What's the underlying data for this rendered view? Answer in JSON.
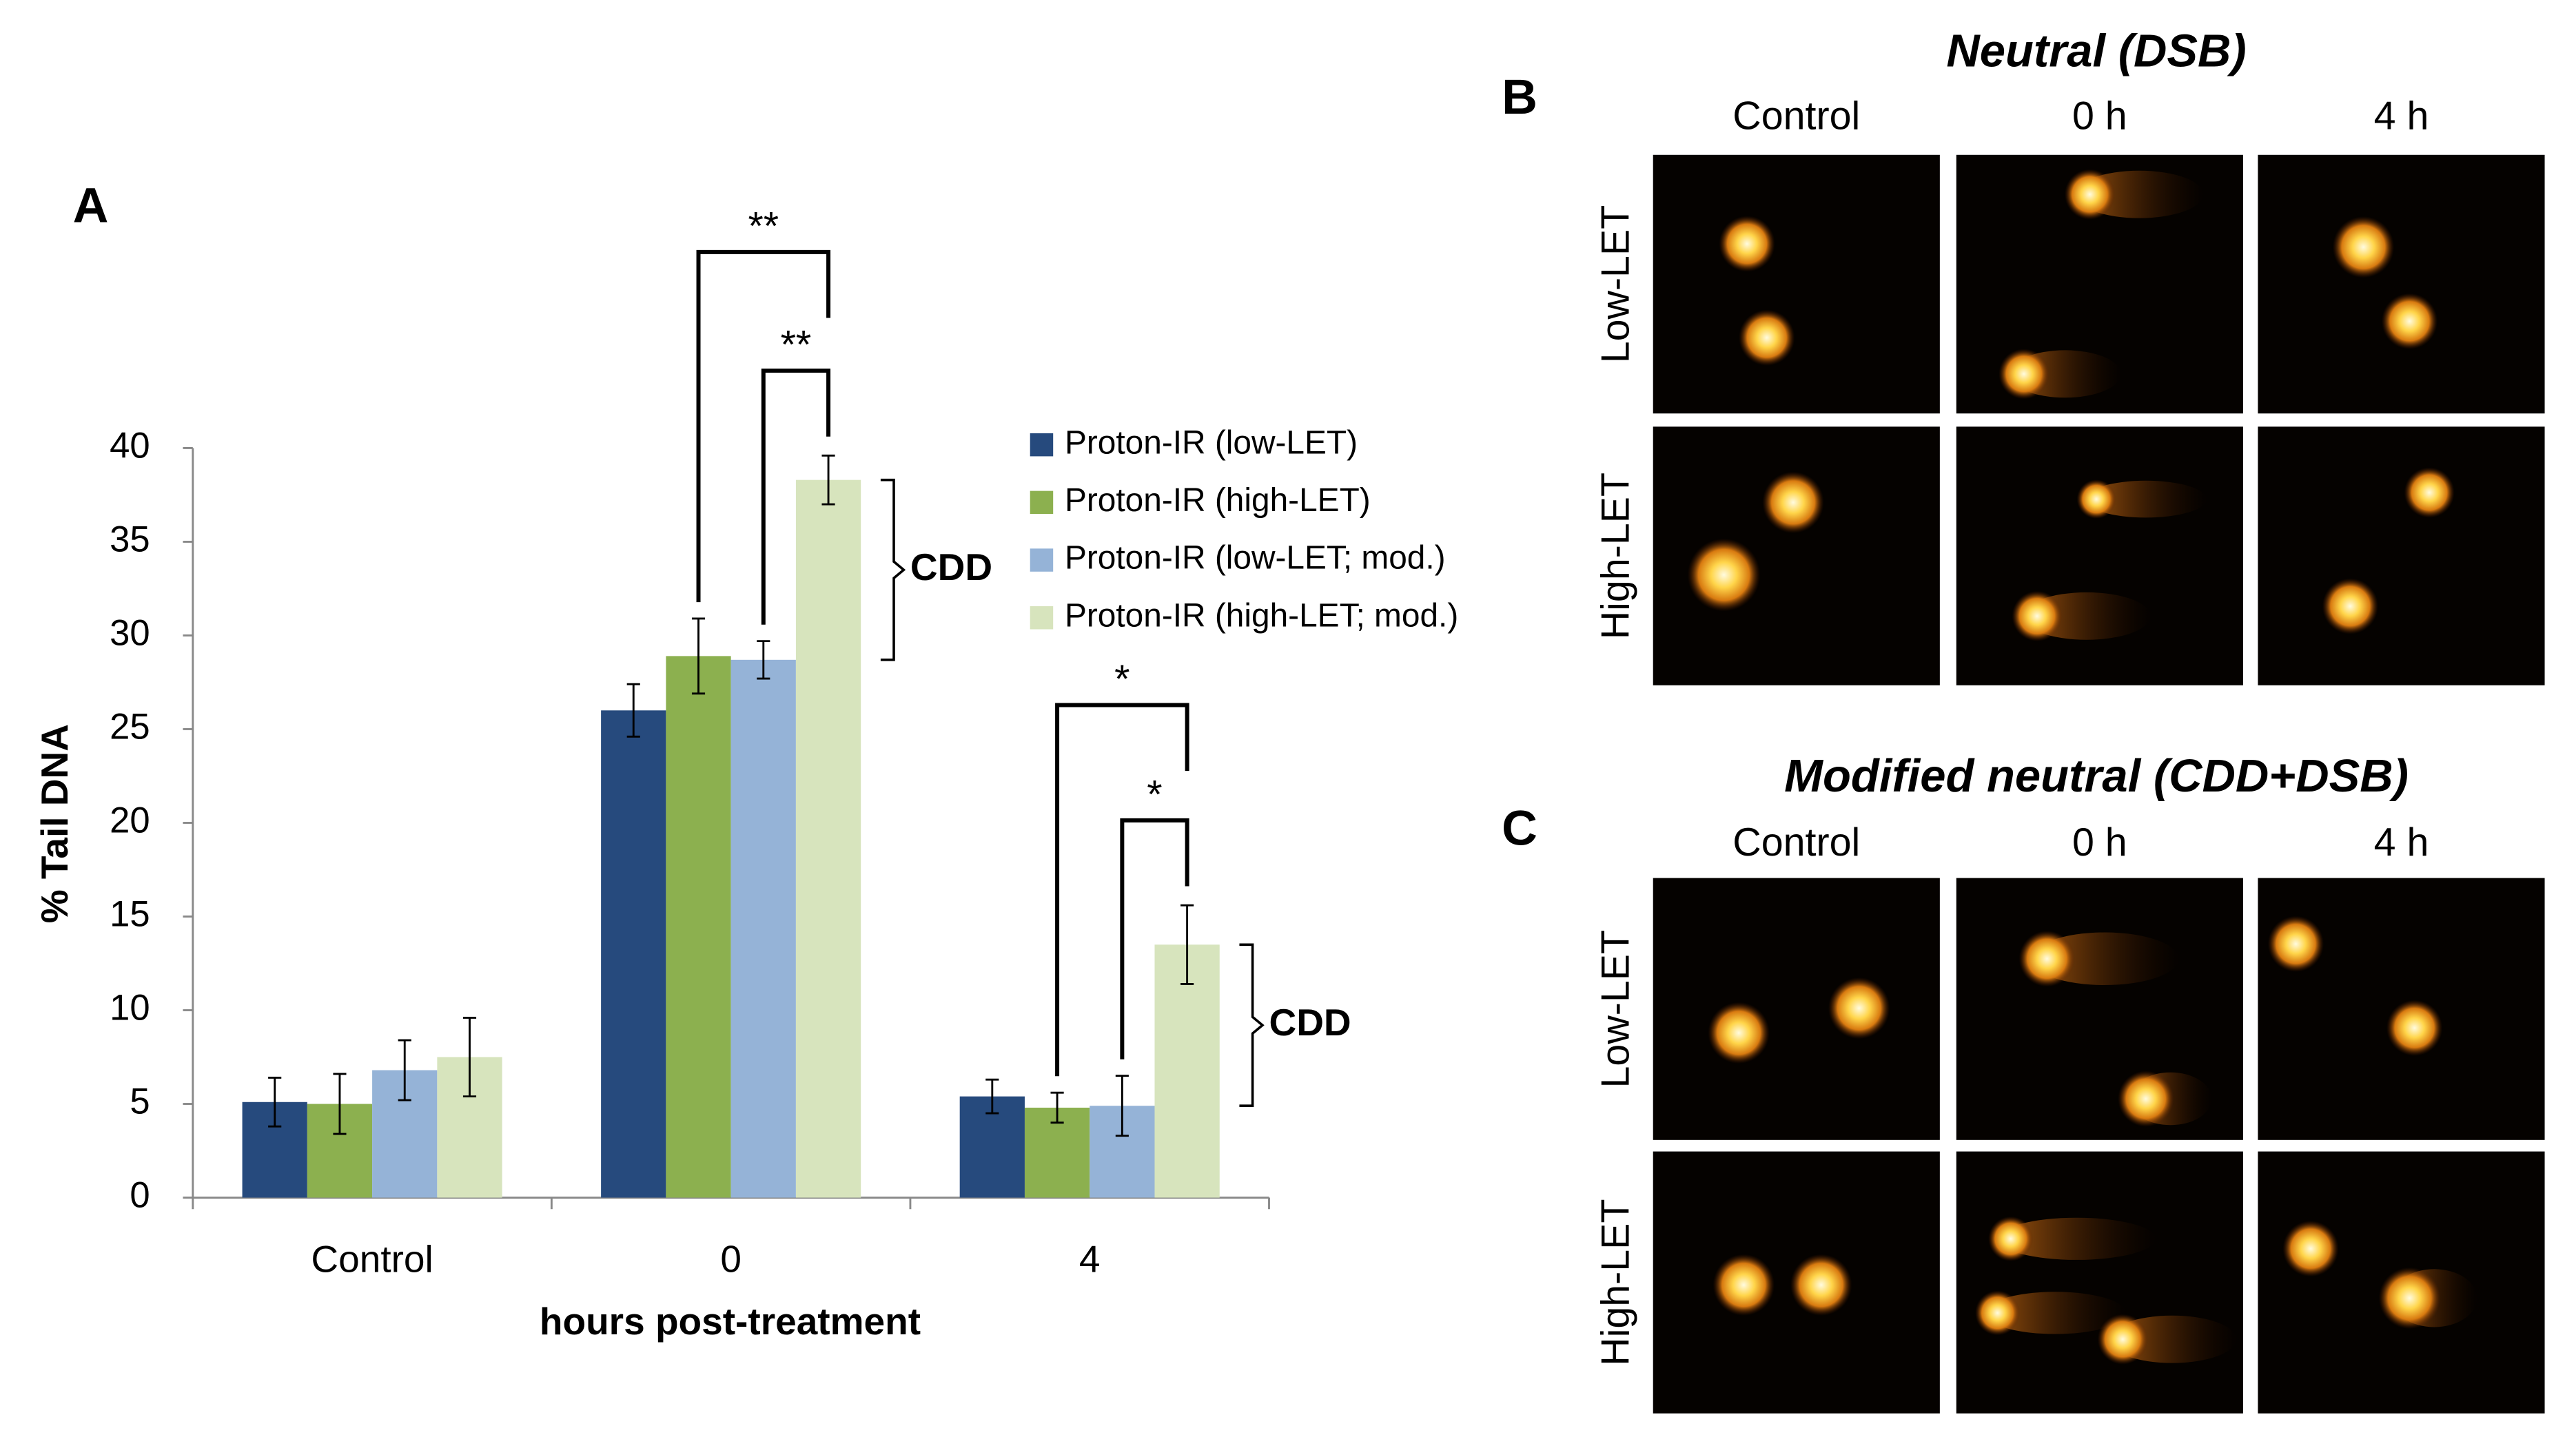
{
  "chart_data": {
    "type": "bar",
    "panel_label": "A",
    "categories": [
      "Control",
      "0",
      "4"
    ],
    "series": [
      {
        "name": "Proton-IR (low-LET)",
        "color": "#264a7d",
        "values": [
          5.1,
          26.0,
          5.4
        ],
        "errors": [
          1.3,
          1.4,
          0.9
        ]
      },
      {
        "name": "Proton-IR (high-LET)",
        "color": "#8cb04f",
        "values": [
          5.0,
          28.9,
          4.8
        ],
        "errors": [
          1.6,
          2.0,
          0.8
        ]
      },
      {
        "name": "Proton-IR (low-LET; mod.)",
        "color": "#95b3d7",
        "values": [
          6.8,
          28.7,
          4.9
        ],
        "errors": [
          1.6,
          1.0,
          1.6
        ]
      },
      {
        "name": "Proton-IR (high-LET; mod.)",
        "color": "#d7e4bd",
        "values": [
          7.5,
          38.3,
          13.5
        ],
        "errors": [
          2.1,
          1.3,
          2.1
        ]
      }
    ],
    "xlabel": "hours post-treatment",
    "ylabel": "% Tail DNA",
    "ylim": [
      0,
      40
    ],
    "yticks": [
      0,
      5,
      10,
      15,
      20,
      25,
      30,
      35,
      40
    ],
    "grid": false,
    "legend": "upper right",
    "significance": [
      {
        "group": 1,
        "from": 1,
        "to": 3,
        "text": "**"
      },
      {
        "group": 1,
        "from": 2,
        "to": 3,
        "text": "**"
      },
      {
        "group": 2,
        "from": 1,
        "to": 3,
        "text": "*"
      },
      {
        "group": 2,
        "from": 2,
        "to": 3,
        "text": "*"
      }
    ],
    "braces": [
      {
        "group": 1,
        "text": "CDD"
      },
      {
        "group": 2,
        "text": "CDD"
      }
    ]
  },
  "comet_panels": [
    {
      "label": "B",
      "title": "Neutral (DSB)",
      "columns": [
        "Control",
        "0 h",
        "4 h"
      ],
      "rows": [
        "Low-LET",
        "High-LET"
      ]
    },
    {
      "label": "C",
      "title": "Modified neutral (CDD+DSB)",
      "columns": [
        "Control",
        "0 h",
        "4 h"
      ],
      "rows": [
        "Low-LET",
        "High-LET"
      ]
    }
  ]
}
